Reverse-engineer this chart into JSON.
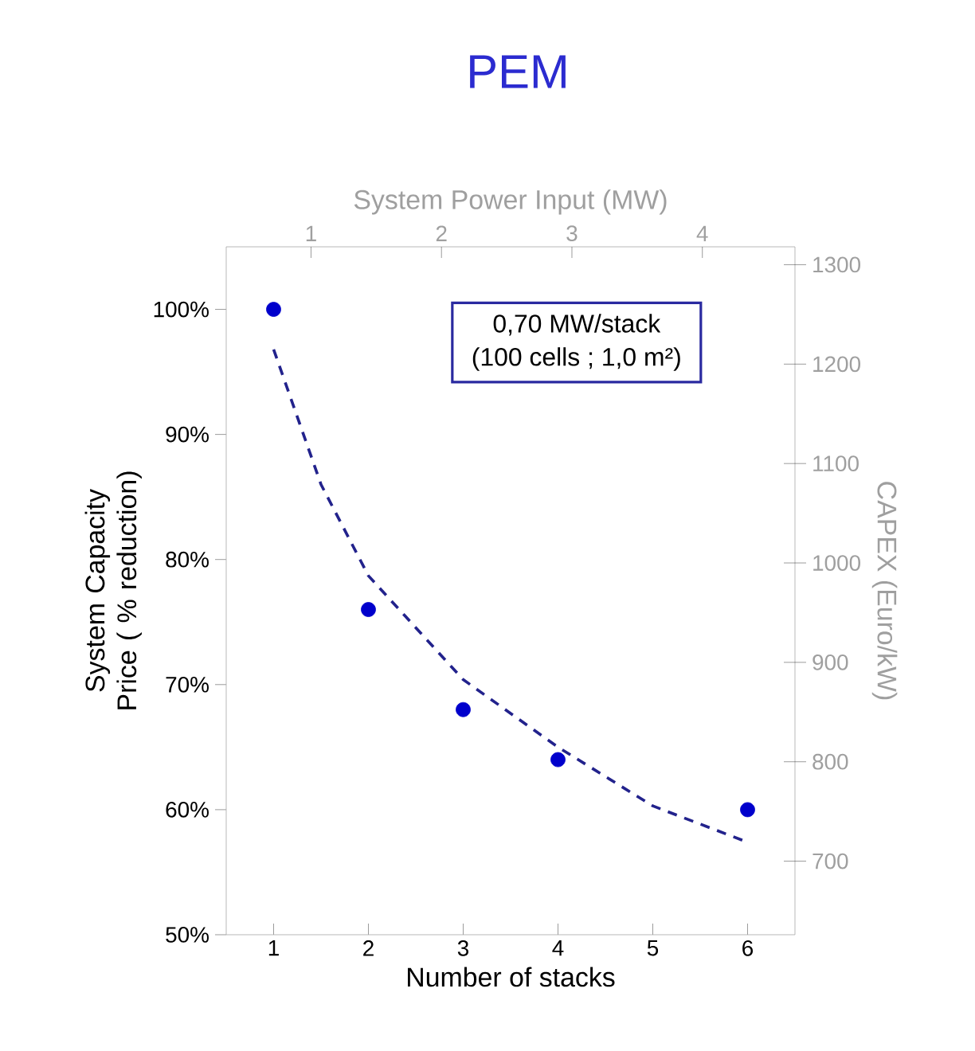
{
  "chart_data": {
    "type": "scatter",
    "title": "PEM",
    "xlabel": "Number of stacks",
    "ylabel": "System Capacity Price ( % reduction)",
    "x2label": "System Power Input (MW)",
    "y2label": "CAPEX (Euro/kW)",
    "xlim": [
      0.5,
      6.5
    ],
    "xticks": [
      1,
      2,
      3,
      4,
      5,
      6
    ],
    "ylim": [
      50,
      105
    ],
    "yticks": [
      {
        "value": 50,
        "label": "50%"
      },
      {
        "value": 60,
        "label": "60%"
      },
      {
        "value": 70,
        "label": "70%"
      },
      {
        "value": 80,
        "label": "80%"
      },
      {
        "value": 90,
        "label": "90%"
      },
      {
        "value": 100,
        "label": "100%"
      }
    ],
    "y2lim": [
      626,
      1318
    ],
    "y2ticks": [
      700,
      800,
      900,
      1000,
      1100,
      1200,
      1300
    ],
    "x2lim": [
      0.35,
      4.71
    ],
    "x2ticks": [
      1,
      2,
      3,
      4
    ],
    "series": [
      {
        "marker": "circle",
        "color": "#0000cc",
        "x": [
          1,
          2,
          3,
          4,
          6
        ],
        "values": [
          100,
          76,
          68,
          64,
          60
        ]
      },
      {
        "type": "line",
        "marker": "none",
        "line_style": "dashed",
        "color": "#22228c",
        "x": [
          1,
          1.5,
          2,
          3,
          4,
          5,
          6
        ],
        "values": [
          96.8,
          86,
          78.7,
          70.4,
          65,
          60.3,
          57.4
        ]
      }
    ],
    "annotations": [
      "0,70 MW/stack",
      "(100 cells ; 1,0 m²)"
    ]
  }
}
